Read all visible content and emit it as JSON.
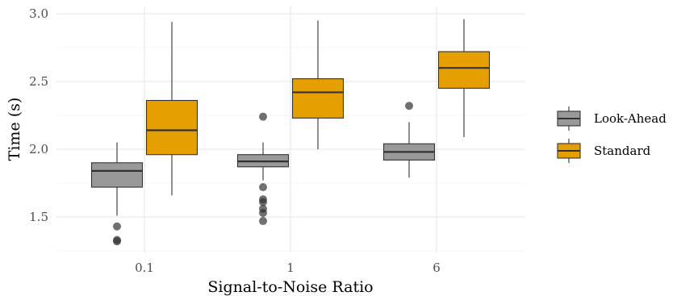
{
  "chart_data": {
    "type": "boxplot",
    "xlabel": "Signal-to-Noise Ratio",
    "ylabel": "Time (s)",
    "categories": [
      "0.1",
      "1",
      "6"
    ],
    "ylim": [
      1.25,
      3.0
    ],
    "yticks": [
      1.5,
      2.0,
      2.5,
      3.0
    ],
    "ytick_labels": [
      "1.5",
      "2.0",
      "2.5",
      "3.0"
    ],
    "grid": true,
    "legend": {
      "position": "right"
    },
    "series": [
      {
        "name": "Look-Ahead",
        "color": "#999999",
        "boxes": [
          {
            "category": "0.1",
            "lower_whisker": 1.51,
            "q1": 1.72,
            "median": 1.84,
            "q3": 1.9,
            "upper_whisker": 2.05,
            "outliers": [
              1.43,
              1.33,
              1.32
            ]
          },
          {
            "category": "1",
            "lower_whisker": 1.77,
            "q1": 1.87,
            "median": 1.91,
            "q3": 1.96,
            "upper_whisker": 2.05,
            "outliers": [
              2.24,
              1.72,
              1.63,
              1.61,
              1.56,
              1.53,
              1.47
            ]
          },
          {
            "category": "6",
            "lower_whisker": 1.79,
            "q1": 1.92,
            "median": 1.98,
            "q3": 2.04,
            "upper_whisker": 2.2,
            "outliers": [
              2.32
            ]
          }
        ]
      },
      {
        "name": "Standard",
        "color": "#E69F00",
        "boxes": [
          {
            "category": "0.1",
            "lower_whisker": 1.66,
            "q1": 1.96,
            "median": 2.14,
            "q3": 2.36,
            "upper_whisker": 2.94,
            "outliers": []
          },
          {
            "category": "1",
            "lower_whisker": 2.0,
            "q1": 2.23,
            "median": 2.42,
            "q3": 2.52,
            "upper_whisker": 2.95,
            "outliers": []
          },
          {
            "category": "6",
            "lower_whisker": 2.09,
            "q1": 2.45,
            "median": 2.6,
            "q3": 2.72,
            "upper_whisker": 2.96,
            "outliers": []
          }
        ]
      }
    ]
  }
}
